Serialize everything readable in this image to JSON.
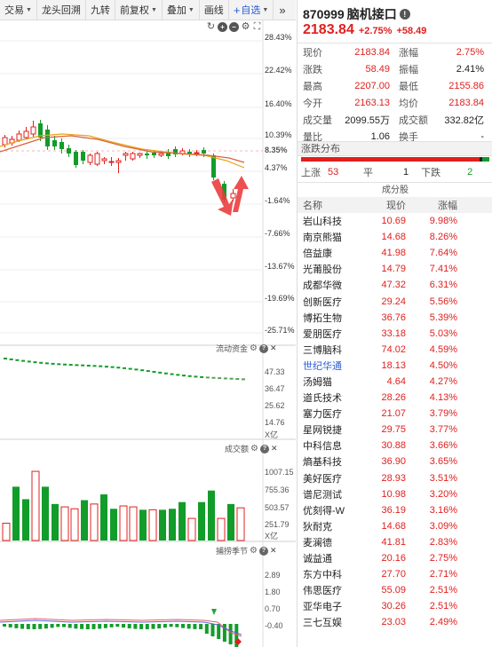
{
  "toolbar": {
    "items": [
      {
        "label": "交易",
        "caret": true
      },
      {
        "label": "龙头回溯",
        "caret": false
      },
      {
        "label": "九转",
        "caret": false
      },
      {
        "label": "前复权",
        "caret": true
      },
      {
        "label": "叠加",
        "caret": true
      },
      {
        "label": "画线",
        "caret": false
      }
    ],
    "add_label": "自选",
    "more_label": "»"
  },
  "main_chart": {
    "left_axis": [
      "8.35%",
      "4.37%"
    ],
    "right_axis": [
      "28.43%",
      "22.42%",
      "16.40%",
      "10.39%",
      "4.37%",
      "-1.64%",
      "-7.66%",
      "-13.67%",
      "-19.69%",
      "-25.71%"
    ],
    "current_pct": "8.35%"
  },
  "flow_pane": {
    "title": "流动资金",
    "axis": [
      "47.33",
      "36.47",
      "25.62",
      "14.76"
    ],
    "unit": "X亿"
  },
  "volume_pane": {
    "title": "成交额",
    "axis": [
      "1007.15",
      "755.36",
      "503.57",
      "251.79"
    ],
    "unit": "X亿",
    "bars": [
      {
        "v": 180,
        "c": "red"
      },
      {
        "v": 560,
        "c": "green"
      },
      {
        "v": 430,
        "c": "green"
      },
      {
        "v": 720,
        "c": "red"
      },
      {
        "v": 560,
        "c": "green"
      },
      {
        "v": 380,
        "c": "green"
      },
      {
        "v": 350,
        "c": "red"
      },
      {
        "v": 330,
        "c": "red"
      },
      {
        "v": 420,
        "c": "green"
      },
      {
        "v": 380,
        "c": "red"
      },
      {
        "v": 480,
        "c": "green"
      },
      {
        "v": 330,
        "c": "green"
      },
      {
        "v": 360,
        "c": "red"
      },
      {
        "v": 350,
        "c": "red"
      },
      {
        "v": 320,
        "c": "green"
      },
      {
        "v": 320,
        "c": "red"
      },
      {
        "v": 320,
        "c": "green"
      },
      {
        "v": 330,
        "c": "green"
      },
      {
        "v": 400,
        "c": "green"
      },
      {
        "v": 230,
        "c": "red"
      },
      {
        "v": 400,
        "c": "green"
      },
      {
        "v": 520,
        "c": "green"
      },
      {
        "v": 230,
        "c": "red"
      },
      {
        "v": 380,
        "c": "green"
      },
      {
        "v": 340,
        "c": "red"
      }
    ]
  },
  "macd_pane": {
    "title": "捕捞季节",
    "axis": [
      "2.89",
      "1.80",
      "0.70",
      "-0.40"
    ]
  },
  "stock": {
    "code": "870999",
    "name": "脑机接口",
    "price": "2183.84",
    "change_pct": "+2.75%",
    "change": "+58.49"
  },
  "quote": [
    {
      "l1": "现价",
      "v1": "2183.84",
      "c1": "red",
      "l2": "涨幅",
      "v2": "2.75%",
      "c2": "red"
    },
    {
      "l1": "涨跌",
      "v1": "58.49",
      "c1": "red",
      "l2": "振幅",
      "v2": "2.41%",
      "c2": "black"
    },
    {
      "l1": "最高",
      "v1": "2207.00",
      "c1": "red",
      "l2": "最低",
      "v2": "2155.86",
      "c2": "red"
    },
    {
      "l1": "今开",
      "v1": "2163.13",
      "c1": "red",
      "l2": "均价",
      "v2": "2183.84",
      "c2": "red"
    },
    {
      "l1": "成交量",
      "v1": "2099.55万",
      "c1": "black",
      "l2": "成交额",
      "v2": "332.82亿",
      "c2": "black"
    },
    {
      "l1": "量比",
      "v1": "1.06",
      "c1": "black",
      "l2": "换手",
      "v2": "-",
      "c2": "black"
    }
  ],
  "distribution": {
    "title": "涨跌分布",
    "up_label": "上涨",
    "up": "53",
    "flat_label": "平",
    "flat": "1",
    "down_label": "下跌",
    "down": "2",
    "up_count": 53,
    "flat_count": 1,
    "down_count": 2
  },
  "constituents": {
    "title": "成分股",
    "col_name": "名称",
    "col_price": "现价",
    "col_pct": "涨幅",
    "rows": [
      {
        "name": "岩山科技",
        "price": "10.69",
        "pct": "9.98%",
        "blue": false
      },
      {
        "name": "南京熊猫",
        "price": "14.68",
        "pct": "8.26%",
        "blue": false
      },
      {
        "name": "倍益康",
        "price": "41.98",
        "pct": "7.64%",
        "blue": false
      },
      {
        "name": "光莆股份",
        "price": "14.79",
        "pct": "7.41%",
        "blue": false
      },
      {
        "name": "成都华微",
        "price": "47.32",
        "pct": "6.31%",
        "blue": false
      },
      {
        "name": "创新医疗",
        "price": "29.24",
        "pct": "5.56%",
        "blue": false
      },
      {
        "name": "博拓生物",
        "price": "36.76",
        "pct": "5.39%",
        "blue": false
      },
      {
        "name": "爱朋医疗",
        "price": "33.18",
        "pct": "5.03%",
        "blue": false
      },
      {
        "name": "三博脑科",
        "price": "74.02",
        "pct": "4.59%",
        "blue": false
      },
      {
        "name": "世纪华通",
        "price": "18.13",
        "pct": "4.50%",
        "blue": true
      },
      {
        "name": "汤姆猫",
        "price": "4.64",
        "pct": "4.27%",
        "blue": false
      },
      {
        "name": "道氏技术",
        "price": "28.26",
        "pct": "4.13%",
        "blue": false
      },
      {
        "name": "塞力医疗",
        "price": "21.07",
        "pct": "3.79%",
        "blue": false
      },
      {
        "name": "星网锐捷",
        "price": "29.75",
        "pct": "3.77%",
        "blue": false
      },
      {
        "name": "中科信息",
        "price": "30.88",
        "pct": "3.66%",
        "blue": false
      },
      {
        "name": "熵基科技",
        "price": "36.90",
        "pct": "3.65%",
        "blue": false
      },
      {
        "name": "美好医疗",
        "price": "28.93",
        "pct": "3.51%",
        "blue": false
      },
      {
        "name": "谱尼测试",
        "price": "10.98",
        "pct": "3.20%",
        "blue": false
      },
      {
        "name": "优刻得-W",
        "price": "36.19",
        "pct": "3.16%",
        "blue": false
      },
      {
        "name": "狄耐克",
        "price": "14.68",
        "pct": "3.09%",
        "blue": false
      },
      {
        "name": "麦澜德",
        "price": "41.81",
        "pct": "2.83%",
        "blue": false
      },
      {
        "name": "诚益通",
        "price": "20.16",
        "pct": "2.75%",
        "blue": false
      },
      {
        "name": "东方中科",
        "price": "27.70",
        "pct": "2.71%",
        "blue": false
      },
      {
        "name": "伟思医疗",
        "price": "55.09",
        "pct": "2.51%",
        "blue": false
      },
      {
        "name": "亚华电子",
        "price": "30.26",
        "pct": "2.51%",
        "blue": false
      },
      {
        "name": "三七互娱",
        "price": "23.03",
        "pct": "2.49%",
        "blue": false
      }
    ]
  },
  "colors": {
    "up": "#e0201e",
    "down": "#129c2a",
    "accent": "#2a5cd6"
  }
}
